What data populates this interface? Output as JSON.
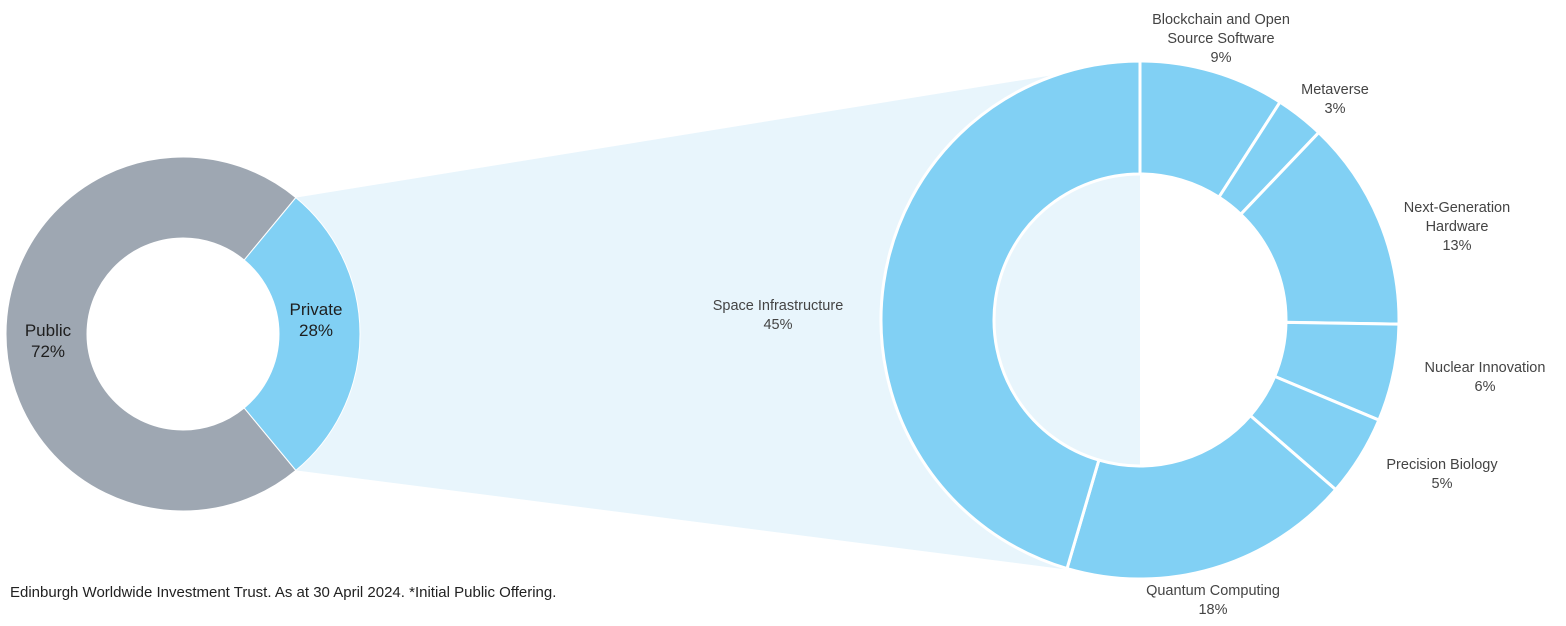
{
  "colors": {
    "public": "#9ea7b2",
    "private": "#81d0f4",
    "connector": "#e8f5fc",
    "separator": "#ffffff"
  },
  "chart_data": [
    {
      "type": "pie",
      "variant": "donut",
      "slices": [
        {
          "name": "Public",
          "value": 72,
          "label_lines": [
            "Public",
            "72%"
          ]
        },
        {
          "name": "Private",
          "value": 28,
          "label_lines": [
            "Private",
            "28%"
          ]
        }
      ]
    },
    {
      "type": "pie",
      "variant": "donut",
      "breakdown_of": "Private",
      "slices": [
        {
          "name": "Blockchain and Open Source Software",
          "value": 9,
          "label_lines": [
            "Blockchain and Open",
            "Source Software",
            "9%"
          ]
        },
        {
          "name": "Metaverse",
          "value": 3,
          "label_lines": [
            "Metaverse",
            "3%"
          ]
        },
        {
          "name": "Next-Generation Hardware",
          "value": 13,
          "label_lines": [
            "Next-Generation",
            "Hardware",
            "13%"
          ]
        },
        {
          "name": "Nuclear Innovation",
          "value": 6,
          "label_lines": [
            "Nuclear Innovation",
            "6%"
          ]
        },
        {
          "name": "Precision Biology",
          "value": 5,
          "label_lines": [
            "Precision Biology",
            "5%"
          ]
        },
        {
          "name": "Quantum Computing",
          "value": 18,
          "label_lines": [
            "Quantum Computing",
            "18%"
          ]
        },
        {
          "name": "Space Infrastructure",
          "value": 45,
          "label_lines": [
            "Space Infrastructure",
            "45%"
          ]
        }
      ]
    }
  ],
  "footnote": "Edinburgh Worldwide Investment Trust. As at 30 April 2024. *Initial Public Offering."
}
